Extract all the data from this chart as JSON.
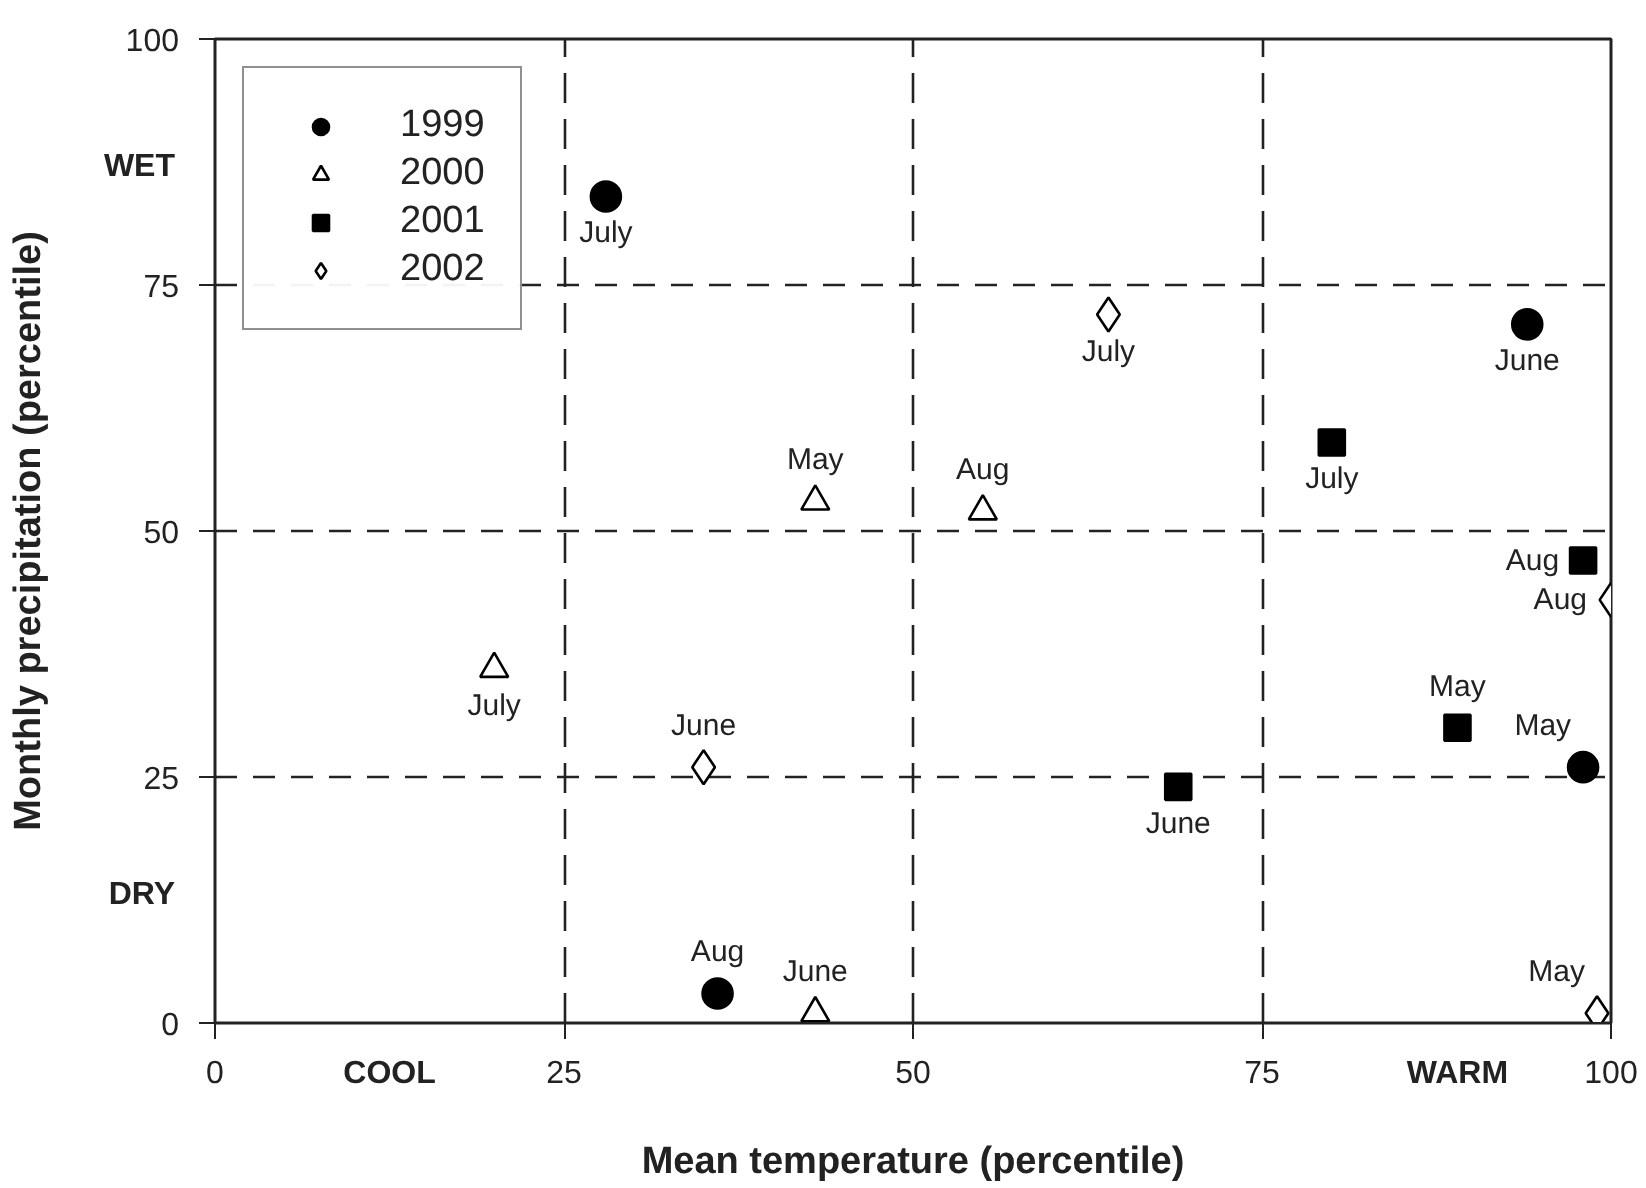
{
  "chart_data": {
    "type": "scatter",
    "xlabel": "Mean temperature (percentile)",
    "ylabel": "Monthly precipitation (percentile)",
    "xlim": [
      0,
      100
    ],
    "ylim": [
      0,
      100
    ],
    "xticks": [
      0,
      25,
      50,
      75,
      100
    ],
    "yticks": [
      0,
      25,
      50,
      75,
      100
    ],
    "grid": true,
    "legend": "top left",
    "series": [
      {
        "name": "1999",
        "color": "#000000",
        "marker": "circle",
        "x": [
          28,
          94,
          98,
          36
        ],
        "values": [
          84,
          71,
          26,
          3
        ]
      },
      {
        "name": "2000",
        "color": "#ffffff",
        "marker": "triangle",
        "x": [
          43,
          55,
          20,
          43
        ],
        "values": [
          53,
          52,
          36,
          1
        ]
      },
      {
        "name": "2001",
        "color": "#000000",
        "marker": "square",
        "x": [
          80,
          98,
          89,
          69
        ],
        "values": [
          59,
          47,
          30,
          24
        ]
      },
      {
        "name": "2002",
        "color": "#ffffff",
        "marker": "diamond",
        "x": [
          64,
          35,
          100,
          99
        ],
        "values": [
          72,
          26,
          43,
          1
        ]
      }
    ],
    "annotations": [
      "WET",
      "DRY",
      "COOL",
      "WARM",
      {
        "text": "July",
        "x": 28,
        "y": 84
      },
      {
        "text": "June",
        "x": 94,
        "y": 71
      },
      {
        "text": "May",
        "x": 98,
        "y": 26
      },
      {
        "text": "Aug",
        "x": 36,
        "y": 3
      },
      {
        "text": "May",
        "x": 43,
        "y": 53
      },
      {
        "text": "Aug",
        "x": 55,
        "y": 52
      },
      {
        "text": "July",
        "x": 20,
        "y": 36
      },
      {
        "text": "June",
        "x": 43,
        "y": 1
      },
      {
        "text": "July",
        "x": 80,
        "y": 59
      },
      {
        "text": "Aug",
        "x": 98,
        "y": 47
      },
      {
        "text": "May",
        "x": 89,
        "y": 30
      },
      {
        "text": "June",
        "x": 69,
        "y": 24
      },
      {
        "text": "July",
        "x": 64,
        "y": 72
      },
      {
        "text": "June",
        "x": 35,
        "y": 26
      },
      {
        "text": "Aug",
        "x": 100,
        "y": 43
      },
      {
        "text": "May",
        "x": 99,
        "y": 1
      }
    ]
  }
}
